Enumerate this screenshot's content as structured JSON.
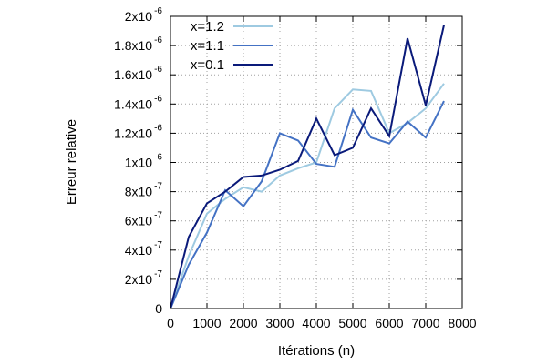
{
  "chart_data": {
    "type": "line",
    "title": "",
    "xlabel": "Itérations (n)",
    "ylabel": "Erreur relative",
    "xlim": [
      0,
      8000
    ],
    "ylim": [
      0,
      2e-06
    ],
    "grid": true,
    "legend_position": "top-left",
    "x_ticks": [
      {
        "value": 0,
        "label": "0"
      },
      {
        "value": 1000,
        "label": "1000"
      },
      {
        "value": 2000,
        "label": "2000"
      },
      {
        "value": 3000,
        "label": "3000"
      },
      {
        "value": 4000,
        "label": "4000"
      },
      {
        "value": 5000,
        "label": "5000"
      },
      {
        "value": 6000,
        "label": "6000"
      },
      {
        "value": 7000,
        "label": "7000"
      },
      {
        "value": 8000,
        "label": "8000"
      }
    ],
    "y_ticks": [
      {
        "value": 0,
        "mant": "0",
        "exp": ""
      },
      {
        "value": 2e-07,
        "mant": "2x10",
        "exp": "-7"
      },
      {
        "value": 4e-07,
        "mant": "4x10",
        "exp": "-7"
      },
      {
        "value": 6e-07,
        "mant": "6x10",
        "exp": "-7"
      },
      {
        "value": 8e-07,
        "mant": "8x10",
        "exp": "-7"
      },
      {
        "value": 1e-06,
        "mant": "1x10",
        "exp": "-6"
      },
      {
        "value": 1.2e-06,
        "mant": "1.2x10",
        "exp": "-6"
      },
      {
        "value": 1.4e-06,
        "mant": "1.4x10",
        "exp": "-6"
      },
      {
        "value": 1.6e-06,
        "mant": "1.6x10",
        "exp": "-6"
      },
      {
        "value": 1.8e-06,
        "mant": "1.8x10",
        "exp": "-6"
      },
      {
        "value": 2e-06,
        "mant": "2x10",
        "exp": "-6"
      }
    ],
    "x": [
      0,
      500,
      1000,
      1500,
      2000,
      2500,
      3000,
      3500,
      4000,
      4500,
      5000,
      5500,
      6000,
      6500,
      7000,
      7500
    ],
    "series": [
      {
        "name": "x=1.2",
        "color": "#9ecae1",
        "values": [
          0,
          3.6e-07,
          6.5e-07,
          7.5e-07,
          8.3e-07,
          8e-07,
          9.1e-07,
          9.6e-07,
          1e-06,
          1.37e-06,
          1.5e-06,
          1.49e-06,
          1.2e-06,
          1.27e-06,
          1.37e-06,
          1.54e-06
        ]
      },
      {
        "name": "x=1.1",
        "color": "#4472c4",
        "values": [
          0,
          3e-07,
          5.2e-07,
          8.1e-07,
          7e-07,
          8.7e-07,
          1.2e-06,
          1.15e-06,
          9.9e-07,
          9.7e-07,
          1.36e-06,
          1.17e-06,
          1.13e-06,
          1.28e-06,
          1.17e-06,
          1.42e-06
        ]
      },
      {
        "name": "x=0.1",
        "color": "#0a1a7a",
        "values": [
          0,
          4.9e-07,
          7.2e-07,
          8e-07,
          9e-07,
          9.1e-07,
          9.5e-07,
          1.01e-06,
          1.3e-06,
          1.05e-06,
          1.1e-06,
          1.37e-06,
          1.18e-06,
          1.85e-06,
          1.39e-06,
          1.94e-06
        ]
      }
    ]
  }
}
